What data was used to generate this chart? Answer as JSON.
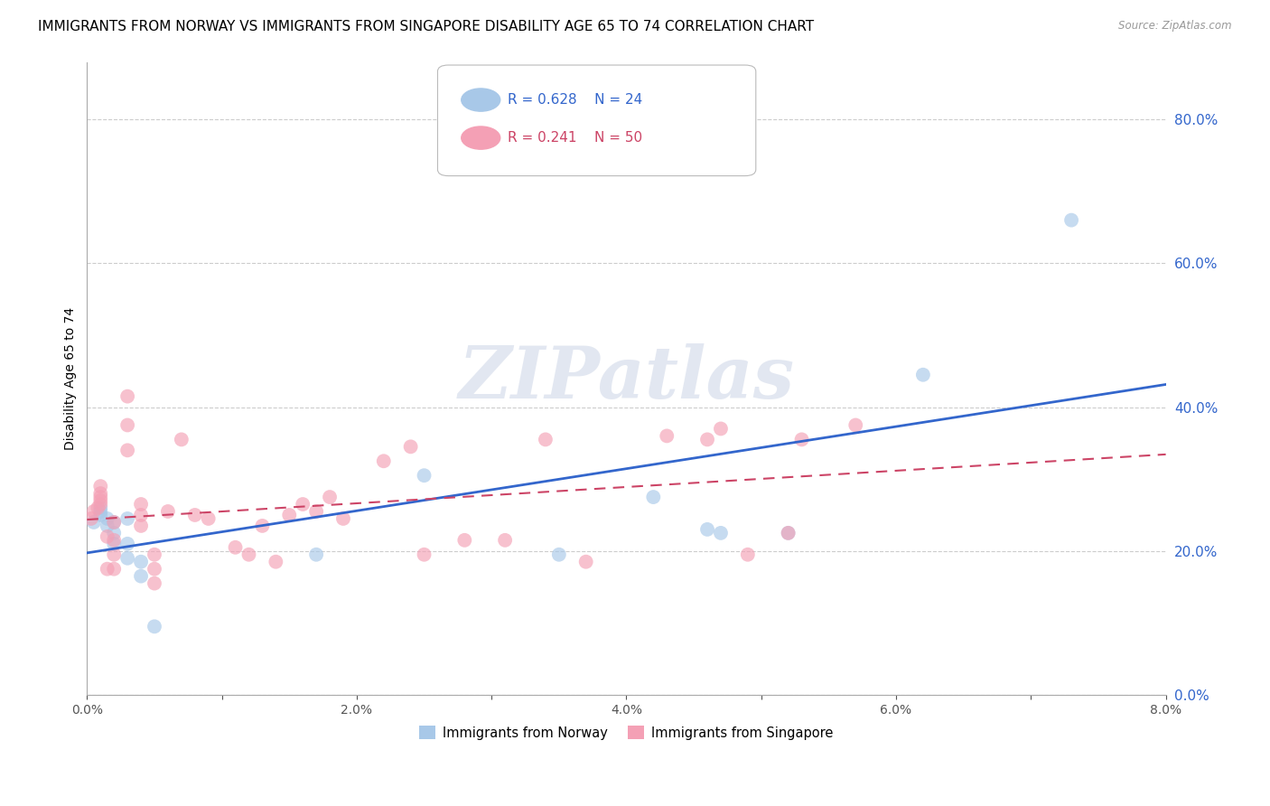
{
  "title": "IMMIGRANTS FROM NORWAY VS IMMIGRANTS FROM SINGAPORE DISABILITY AGE 65 TO 74 CORRELATION CHART",
  "source": "Source: ZipAtlas.com",
  "ylabel": "Disability Age 65 to 74",
  "xlim": [
    0.0,
    0.08
  ],
  "ylim": [
    0.0,
    0.88
  ],
  "xticks": [
    0.0,
    0.01,
    0.02,
    0.03,
    0.04,
    0.05,
    0.06,
    0.07,
    0.08
  ],
  "xticklabels": [
    "0.0%",
    "",
    "2.0%",
    "",
    "4.0%",
    "",
    "6.0%",
    "",
    "8.0%"
  ],
  "yticks": [
    0.0,
    0.2,
    0.4,
    0.6,
    0.8
  ],
  "yticklabels": [
    "0.0%",
    "20.0%",
    "40.0%",
    "60.0%",
    "80.0%"
  ],
  "norway_color": "#a8c8e8",
  "singapore_color": "#f4a0b5",
  "norway_line_color": "#3366cc",
  "singapore_line_color": "#cc4466",
  "norway_R": 0.628,
  "norway_N": 24,
  "singapore_R": 0.241,
  "singapore_N": 50,
  "norway_x": [
    0.0005,
    0.001,
    0.001,
    0.001,
    0.0015,
    0.0015,
    0.002,
    0.002,
    0.002,
    0.003,
    0.003,
    0.003,
    0.004,
    0.004,
    0.005,
    0.017,
    0.025,
    0.035,
    0.042,
    0.046,
    0.047,
    0.052,
    0.062,
    0.073
  ],
  "norway_y": [
    0.24,
    0.25,
    0.255,
    0.26,
    0.235,
    0.245,
    0.21,
    0.225,
    0.24,
    0.19,
    0.21,
    0.245,
    0.165,
    0.185,
    0.095,
    0.195,
    0.305,
    0.195,
    0.275,
    0.23,
    0.225,
    0.225,
    0.445,
    0.66
  ],
  "singapore_x": [
    0.0003,
    0.0005,
    0.0008,
    0.001,
    0.001,
    0.001,
    0.001,
    0.001,
    0.0015,
    0.0015,
    0.002,
    0.002,
    0.002,
    0.002,
    0.003,
    0.003,
    0.003,
    0.004,
    0.004,
    0.004,
    0.005,
    0.005,
    0.005,
    0.006,
    0.007,
    0.008,
    0.009,
    0.011,
    0.012,
    0.013,
    0.014,
    0.015,
    0.016,
    0.017,
    0.018,
    0.019,
    0.022,
    0.024,
    0.025,
    0.028,
    0.031,
    0.034,
    0.037,
    0.043,
    0.046,
    0.047,
    0.049,
    0.052,
    0.053,
    0.057
  ],
  "singapore_y": [
    0.245,
    0.255,
    0.26,
    0.265,
    0.27,
    0.275,
    0.28,
    0.29,
    0.175,
    0.22,
    0.175,
    0.195,
    0.215,
    0.24,
    0.34,
    0.375,
    0.415,
    0.235,
    0.25,
    0.265,
    0.155,
    0.175,
    0.195,
    0.255,
    0.355,
    0.25,
    0.245,
    0.205,
    0.195,
    0.235,
    0.185,
    0.25,
    0.265,
    0.255,
    0.275,
    0.245,
    0.325,
    0.345,
    0.195,
    0.215,
    0.215,
    0.355,
    0.185,
    0.36,
    0.355,
    0.37,
    0.195,
    0.225,
    0.355,
    0.375
  ],
  "background_color": "#ffffff",
  "grid_color": "#cccccc",
  "title_fontsize": 11,
  "axis_label_fontsize": 10,
  "tick_fontsize": 10,
  "dot_size": 130,
  "dot_alpha": 0.65
}
